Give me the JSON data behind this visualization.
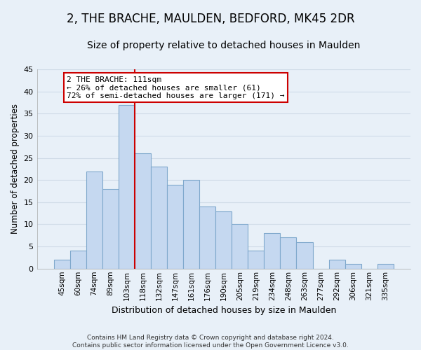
{
  "title": "2, THE BRACHE, MAULDEN, BEDFORD, MK45 2DR",
  "subtitle": "Size of property relative to detached houses in Maulden",
  "xlabel": "Distribution of detached houses by size in Maulden",
  "ylabel": "Number of detached properties",
  "categories": [
    "45sqm",
    "60sqm",
    "74sqm",
    "89sqm",
    "103sqm",
    "118sqm",
    "132sqm",
    "147sqm",
    "161sqm",
    "176sqm",
    "190sqm",
    "205sqm",
    "219sqm",
    "234sqm",
    "248sqm",
    "263sqm",
    "277sqm",
    "292sqm",
    "306sqm",
    "321sqm",
    "335sqm"
  ],
  "values": [
    2,
    4,
    22,
    18,
    37,
    26,
    23,
    19,
    20,
    14,
    13,
    10,
    4,
    8,
    7,
    6,
    0,
    2,
    1,
    0,
    1
  ],
  "bar_color": "#c5d8f0",
  "bar_edge_color": "#7fa8cc",
  "vline_x": 4.5,
  "vline_color": "#cc0000",
  "annotation_line1": "2 THE BRACHE: 111sqm",
  "annotation_line2": "← 26% of detached houses are smaller (61)",
  "annotation_line3": "72% of semi-detached houses are larger (171) →",
  "annotation_box_color": "#ffffff",
  "annotation_box_edge": "#cc0000",
  "ylim": [
    0,
    45
  ],
  "yticks": [
    0,
    5,
    10,
    15,
    20,
    25,
    30,
    35,
    40,
    45
  ],
  "footnote1": "Contains HM Land Registry data © Crown copyright and database right 2024.",
  "footnote2": "Contains public sector information licensed under the Open Government Licence v3.0.",
  "bg_color": "#e8f0f8",
  "grid_color": "#d0dce8",
  "title_fontsize": 12,
  "subtitle_fontsize": 10,
  "tick_fontsize": 7.5,
  "ylabel_fontsize": 8.5,
  "xlabel_fontsize": 9
}
